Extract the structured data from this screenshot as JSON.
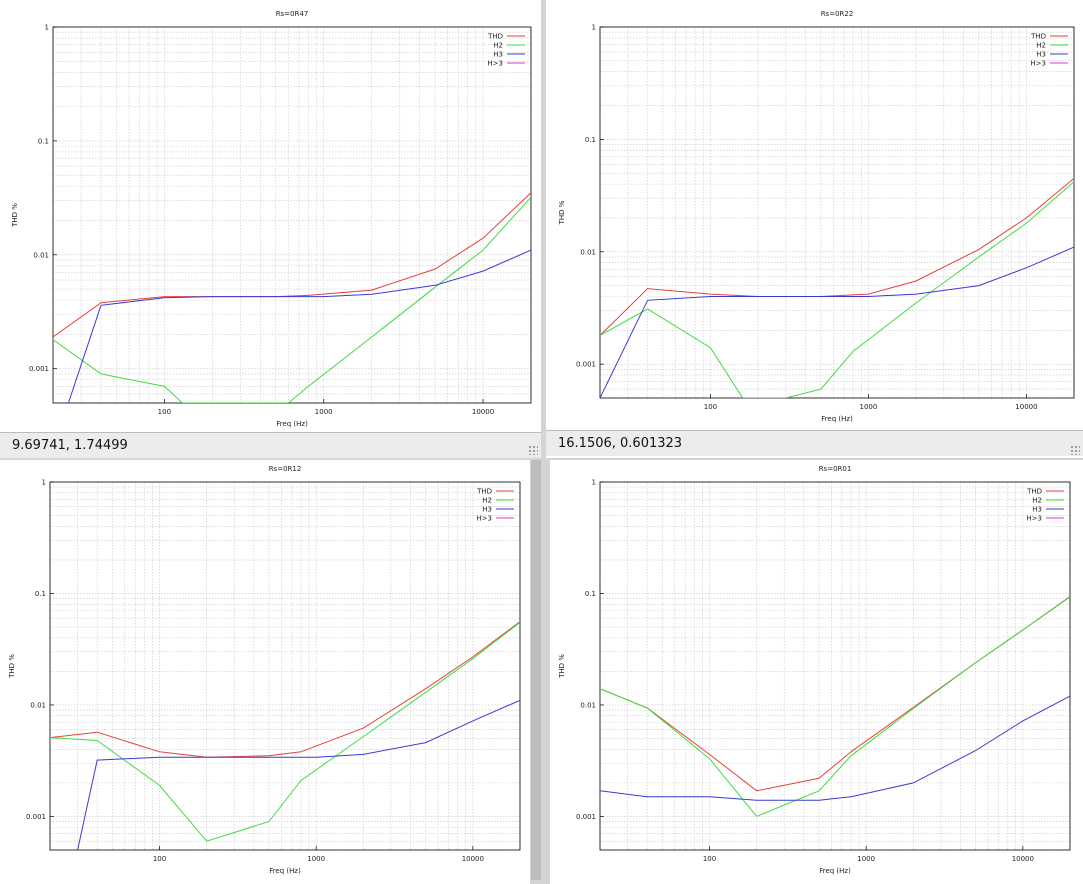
{
  "windows": [
    {
      "status_text": "9.69741,  1.74499"
    },
    {
      "status_text": "16.1506,  0.601323"
    },
    {
      "status_text": ""
    },
    {
      "status_text": ""
    }
  ],
  "colors": {
    "THD": "#e8403a",
    "H2": "#3fdc3f",
    "H3": "#3a3ad6",
    "H>3": "#d83ad8",
    "grid": "#c8c8c8",
    "frame": "#000000"
  },
  "chart_data": [
    {
      "type": "line",
      "title": "Rs=0R47",
      "xlabel": "Freq (Hz)",
      "ylabel": "THD %",
      "xscale": "log",
      "yscale": "log",
      "xlim": [
        20,
        20000
      ],
      "ylim": [
        0.0005,
        1
      ],
      "x_ticks": [
        "100",
        "1000",
        "10000"
      ],
      "y_ticks": [
        "0.001",
        "0.01",
        "0.1",
        "1"
      ],
      "legend": [
        "THD",
        "H2",
        "H3",
        "H>3"
      ],
      "legend_position": "top-right",
      "grid": true,
      "series": [
        {
          "name": "THD",
          "x": [
            20,
            40,
            100,
            200,
            500,
            800,
            2000,
            5000,
            10000,
            20000
          ],
          "y": [
            0.0019,
            0.0038,
            0.0043,
            0.0043,
            0.0043,
            0.0044,
            0.0049,
            0.0075,
            0.014,
            0.035
          ]
        },
        {
          "name": "H2",
          "x": [
            20,
            40,
            100,
            130,
            600,
            800,
            2000,
            5000,
            10000,
            20000
          ],
          "y": [
            0.0018,
            0.0009,
            0.0007,
            0.0005,
            0.0005,
            0.0007,
            0.0019,
            0.0052,
            0.011,
            0.032
          ]
        },
        {
          "name": "H3",
          "x": [
            25,
            40,
            100,
            200,
            500,
            1000,
            2000,
            5000,
            10000,
            20000
          ],
          "y": [
            0.0005,
            0.0036,
            0.0042,
            0.0043,
            0.0043,
            0.0043,
            0.0045,
            0.0054,
            0.0072,
            0.011
          ]
        }
      ]
    },
    {
      "type": "line",
      "title": "Rs=0R22",
      "xlabel": "Freq (Hz)",
      "ylabel": "THD %",
      "xscale": "log",
      "yscale": "log",
      "xlim": [
        20,
        20000
      ],
      "ylim": [
        0.0005,
        1
      ],
      "x_ticks": [
        "100",
        "1000",
        "10000"
      ],
      "y_ticks": [
        "0.001",
        "0.01",
        "0.1",
        "1"
      ],
      "legend": [
        "THD",
        "H2",
        "H3",
        "H>3"
      ],
      "legend_position": "top-right",
      "grid": true,
      "series": [
        {
          "name": "THD",
          "x": [
            20,
            40,
            100,
            200,
            500,
            1000,
            2000,
            5000,
            10000,
            20000
          ],
          "y": [
            0.0018,
            0.0047,
            0.0042,
            0.004,
            0.004,
            0.0042,
            0.0055,
            0.0105,
            0.02,
            0.045
          ]
        },
        {
          "name": "H2",
          "x": [
            20,
            40,
            100,
            160,
            300,
            500,
            800,
            2000,
            5000,
            10000,
            20000
          ],
          "y": [
            0.0018,
            0.0031,
            0.0014,
            0.0005,
            0.0005,
            0.0006,
            0.0013,
            0.0035,
            0.009,
            0.018,
            0.042
          ]
        },
        {
          "name": "H3",
          "x": [
            20,
            40,
            100,
            200,
            500,
            1000,
            2000,
            5000,
            10000,
            20000
          ],
          "y": [
            0.0005,
            0.0037,
            0.004,
            0.004,
            0.004,
            0.004,
            0.0042,
            0.005,
            0.0072,
            0.011
          ]
        }
      ]
    },
    {
      "type": "line",
      "title": "Rs=0R12",
      "xlabel": "Freq (Hz)",
      "ylabel": "THD %",
      "xscale": "log",
      "yscale": "log",
      "xlim": [
        20,
        20000
      ],
      "ylim": [
        0.0005,
        1
      ],
      "x_ticks": [
        "100",
        "1000",
        "10000"
      ],
      "y_ticks": [
        "0.001",
        "0.01",
        "0.1",
        "1"
      ],
      "legend": [
        "THD",
        "H2",
        "H3",
        "H>3"
      ],
      "legend_position": "top-right",
      "grid": true,
      "series": [
        {
          "name": "THD",
          "x": [
            20,
            40,
            100,
            200,
            500,
            800,
            2000,
            5000,
            10000,
            20000
          ],
          "y": [
            0.0051,
            0.0057,
            0.0038,
            0.0034,
            0.0035,
            0.0038,
            0.0062,
            0.014,
            0.027,
            0.056
          ]
        },
        {
          "name": "H2",
          "x": [
            20,
            40,
            100,
            200,
            500,
            800,
            2000,
            5000,
            10000,
            20000
          ],
          "y": [
            0.0051,
            0.0048,
            0.0019,
            0.0006,
            0.0009,
            0.0021,
            0.0052,
            0.013,
            0.026,
            0.055
          ]
        },
        {
          "name": "H3",
          "x": [
            30,
            40,
            100,
            200,
            500,
            1000,
            2000,
            5000,
            10000,
            20000
          ],
          "y": [
            0.0005,
            0.0032,
            0.0034,
            0.0034,
            0.0034,
            0.0034,
            0.0036,
            0.0046,
            0.0072,
            0.011
          ]
        }
      ]
    },
    {
      "type": "line",
      "title": "Rs=0R01",
      "xlabel": "Freq (Hz)",
      "ylabel": "THD %",
      "xscale": "log",
      "yscale": "log",
      "xlim": [
        20,
        20000
      ],
      "ylim": [
        0.0005,
        1
      ],
      "x_ticks": [
        "100",
        "1000",
        "10000"
      ],
      "y_ticks": [
        "0.001",
        "0.01",
        "0.1",
        "1"
      ],
      "legend": [
        "THD",
        "H2",
        "H3",
        "H>3"
      ],
      "legend_position": "top-right",
      "grid": true,
      "series": [
        {
          "name": "THD",
          "x": [
            20,
            40,
            100,
            200,
            500,
            800,
            2000,
            5000,
            10000,
            20000
          ],
          "y": [
            0.014,
            0.0094,
            0.0036,
            0.0017,
            0.0022,
            0.0038,
            0.0095,
            0.024,
            0.047,
            0.094
          ]
        },
        {
          "name": "H2",
          "x": [
            20,
            40,
            100,
            200,
            500,
            800,
            2000,
            5000,
            10000,
            20000
          ],
          "y": [
            0.014,
            0.0094,
            0.0033,
            0.001,
            0.0017,
            0.0035,
            0.0093,
            0.024,
            0.047,
            0.093
          ]
        },
        {
          "name": "H3",
          "x": [
            20,
            40,
            100,
            200,
            500,
            800,
            2000,
            5000,
            10000,
            20000
          ],
          "y": [
            0.0017,
            0.0015,
            0.0015,
            0.0014,
            0.0014,
            0.0015,
            0.002,
            0.0039,
            0.0072,
            0.012
          ]
        }
      ]
    }
  ]
}
